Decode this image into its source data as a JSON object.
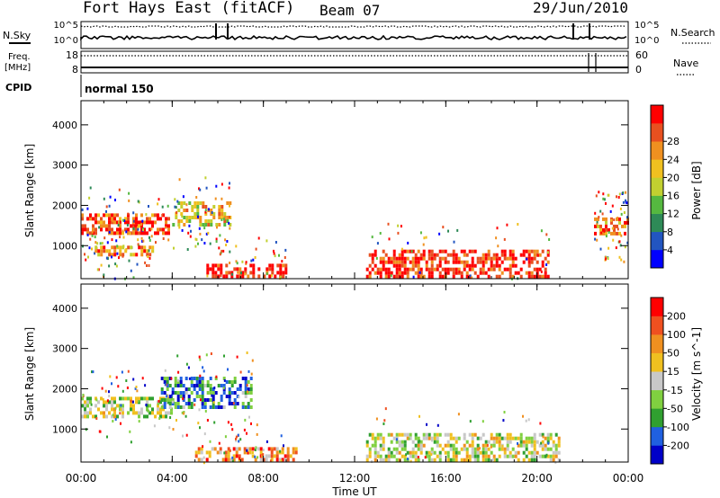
{
  "header": {
    "title": "Fort Hays East (fitACF)",
    "beam": "Beam 07",
    "date": "29/Jun/2010"
  },
  "top_panel": {
    "left_label": "N.Sky",
    "right_label": "N.Search",
    "left_ticks": [
      "10^5",
      "10^0"
    ],
    "right_ticks": [
      "10^5",
      "10^0"
    ]
  },
  "freq_panel": {
    "left_label_1": "Freq.",
    "left_label_2": "[MHz]",
    "right_label": "Nave",
    "left_ticks": [
      "18",
      "8"
    ],
    "right_ticks": [
      "60",
      "0"
    ]
  },
  "cpid": {
    "label": "CPID",
    "value": "normal 150"
  },
  "chart_data": [
    {
      "type": "heatmap",
      "name": "Power",
      "ylabel": "Slant Range [km]",
      "xlabel": "",
      "ylim": [
        180,
        4600
      ],
      "yticks": [
        "1000",
        "2000",
        "3000",
        "4000"
      ],
      "xlim": [
        0,
        24
      ],
      "colorbar": {
        "label": "Power [dB]",
        "ticks": [
          "4",
          "8",
          "12",
          "16",
          "20",
          "24",
          "28"
        ],
        "colors": [
          "#0000ff",
          "#2255c0",
          "#2e8a57",
          "#55b840",
          "#c2d030",
          "#f0c020",
          "#f09020",
          "#e85020",
          "#ff0000"
        ]
      },
      "regions": [
        {
          "t0": 0.0,
          "t1": 3.8,
          "r0": 1350,
          "r1": 1800,
          "level": 0.85
        },
        {
          "t0": 0.6,
          "t1": 3.2,
          "r0": 800,
          "r1": 1000,
          "level": 0.7
        },
        {
          "t0": 4.0,
          "t1": 6.5,
          "r0": 1500,
          "r1": 2100,
          "level": 0.6
        },
        {
          "t0": 5.5,
          "t1": 9.0,
          "r0": 250,
          "r1": 550,
          "level": 0.95
        },
        {
          "t0": 12.5,
          "t1": 20.5,
          "r0": 250,
          "r1": 900,
          "level": 0.9
        },
        {
          "t0": 22.5,
          "t1": 24.0,
          "r0": 1300,
          "r1": 1700,
          "level": 0.75
        }
      ]
    },
    {
      "type": "heatmap",
      "name": "Velocity",
      "ylabel": "Slant Range [km]",
      "xlabel": "Time UT",
      "ylim": [
        180,
        4600
      ],
      "yticks": [
        "1000",
        "2000",
        "3000",
        "4000"
      ],
      "xlim": [
        0,
        24
      ],
      "xticks": [
        "00:00",
        "04:00",
        "08:00",
        "12:00",
        "16:00",
        "20:00",
        "00:00"
      ],
      "colorbar": {
        "label": "Velocity [m s^-1]",
        "ticks": [
          "200",
          "100",
          "50",
          "15",
          "-15",
          "-50",
          "-100",
          "-200"
        ],
        "colors": [
          "#0000c8",
          "#2060e0",
          "#30a030",
          "#80d040",
          "#c8c8c8",
          "#f0c020",
          "#f09020",
          "#f05020",
          "#ff0000"
        ]
      },
      "regions": [
        {
          "t0": 0.0,
          "t1": 4.0,
          "r0": 1350,
          "r1": 1800,
          "level": 0.45
        },
        {
          "t0": 3.5,
          "t1": 7.5,
          "r0": 1500,
          "r1": 2300,
          "level": 0.25
        },
        {
          "t0": 12.5,
          "t1": 21.0,
          "r0": 250,
          "r1": 900,
          "level": 0.5
        },
        {
          "t0": 5.0,
          "t1": 9.5,
          "r0": 250,
          "r1": 550,
          "level": 0.7
        }
      ]
    }
  ]
}
